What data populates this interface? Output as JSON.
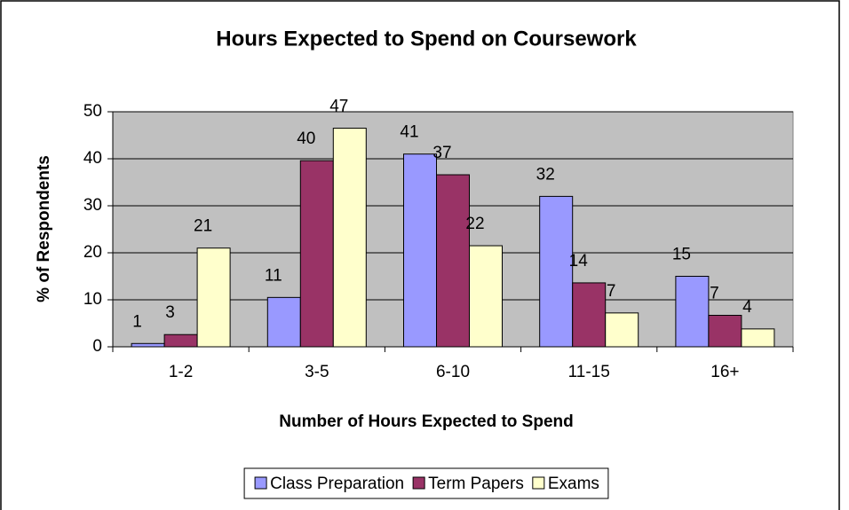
{
  "chart_data": {
    "type": "bar",
    "title": "Hours Expected to Spend on Coursework",
    "x_label": "Number of Hours Expected to Spend",
    "y_label": "% of Respondents",
    "categories": [
      "1-2",
      "3-5",
      "6-10",
      "11-15",
      "16+"
    ],
    "series": [
      {
        "name": "Class Preparation",
        "color": "#9999ff",
        "values": [
          0.7,
          10.5,
          41,
          32,
          15
        ],
        "value_labels": [
          "1",
          "11",
          "41",
          "32",
          "15"
        ]
      },
      {
        "name": "Term Papers",
        "color": "#993366",
        "values": [
          2.6,
          39.6,
          36.6,
          13.6,
          6.7
        ],
        "value_labels": [
          "3",
          "40",
          "37",
          "14",
          "7"
        ]
      },
      {
        "name": "Exams",
        "color": "#ffffcc",
        "values": [
          21,
          46.5,
          21.5,
          7.2,
          3.8
        ],
        "value_labels": [
          "21",
          "47",
          "22",
          "7",
          "4"
        ]
      }
    ],
    "ylim": [
      0,
      50
    ],
    "yticks": [
      0,
      10,
      20,
      30,
      40,
      50
    ],
    "grid": true,
    "plot_background": "#c0c0c0",
    "legend": "bottom"
  }
}
